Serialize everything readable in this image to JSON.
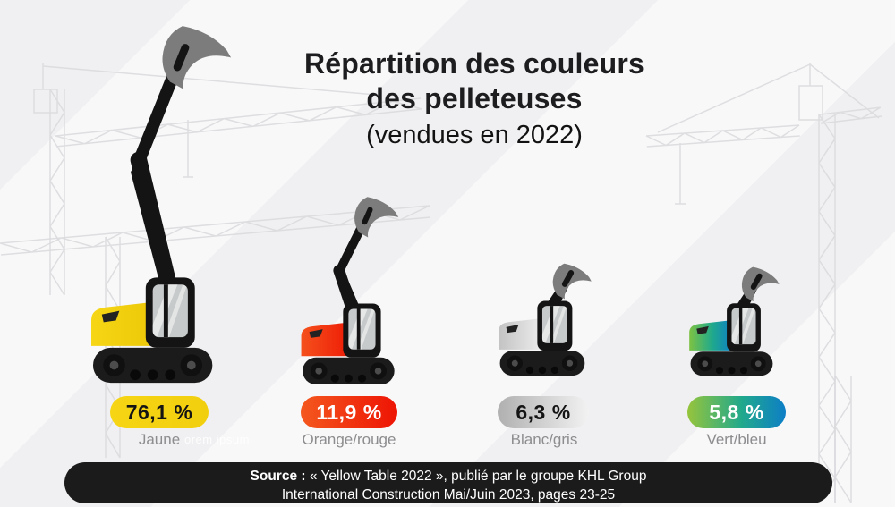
{
  "title": {
    "line1": "Répartition des couleurs",
    "line2": "des pelleteuses",
    "subtitle": "(vendues en 2022)"
  },
  "chart_data": {
    "type": "bar",
    "variant": "pictogram-excavators",
    "title": "Répartition des couleurs des pelleteuses (vendues en 2022)",
    "unit": "%",
    "categories": [
      "Jaune",
      "Orange/rouge",
      "Blanc/gris",
      "Vert/bleu"
    ],
    "values": [
      76.1,
      11.9,
      6.3,
      5.8
    ],
    "value_labels": [
      "76,1 %",
      "11,9 %",
      "6,3 %",
      "5,8 %"
    ],
    "colors": [
      "#f6d515",
      "#f02c0d",
      "#c9c9c9",
      "#2da08a"
    ],
    "legend_position": "none",
    "grid": false
  },
  "items": [
    {
      "label": "Jaune",
      "value": "76,1 %",
      "pill_from": "#f6d515",
      "pill_to": "#f2cf0e",
      "pill_text": "#141414",
      "body_from": "#f6d615",
      "body_to": "#ecc808"
    },
    {
      "label": "Orange/rouge",
      "value": "11,9 %",
      "pill_from": "#f4581e",
      "pill_to": "#ee1404",
      "pill_text": "#ffffff",
      "body_from": "#f5511c",
      "body_to": "#ee1d07"
    },
    {
      "label": "Blanc/gris",
      "value": "6,3 %",
      "pill_from": "#b0b0b0",
      "pill_to": "#f2f2f2",
      "pill_text": "#141414",
      "body_from": "#c3c3c3",
      "body_to": "#ededed"
    },
    {
      "label": "Vert/bleu",
      "value": "5,8 %",
      "pill_from": "#96c43c",
      "pill_to": "#0d7ec6",
      "pill_mid": "#21a98c",
      "pill_text": "#ffffff",
      "body_from": "#7cc243",
      "body_to": "#0d80c4",
      "body_mid": "#1fa98c"
    }
  ],
  "watermark": "orem ipsum",
  "source": {
    "label": "Source :",
    "line1": "« Yellow Table 2022 », publié par le groupe KHL Group",
    "line2": "International Construction Mai/Juin 2023, pages 23-25"
  }
}
